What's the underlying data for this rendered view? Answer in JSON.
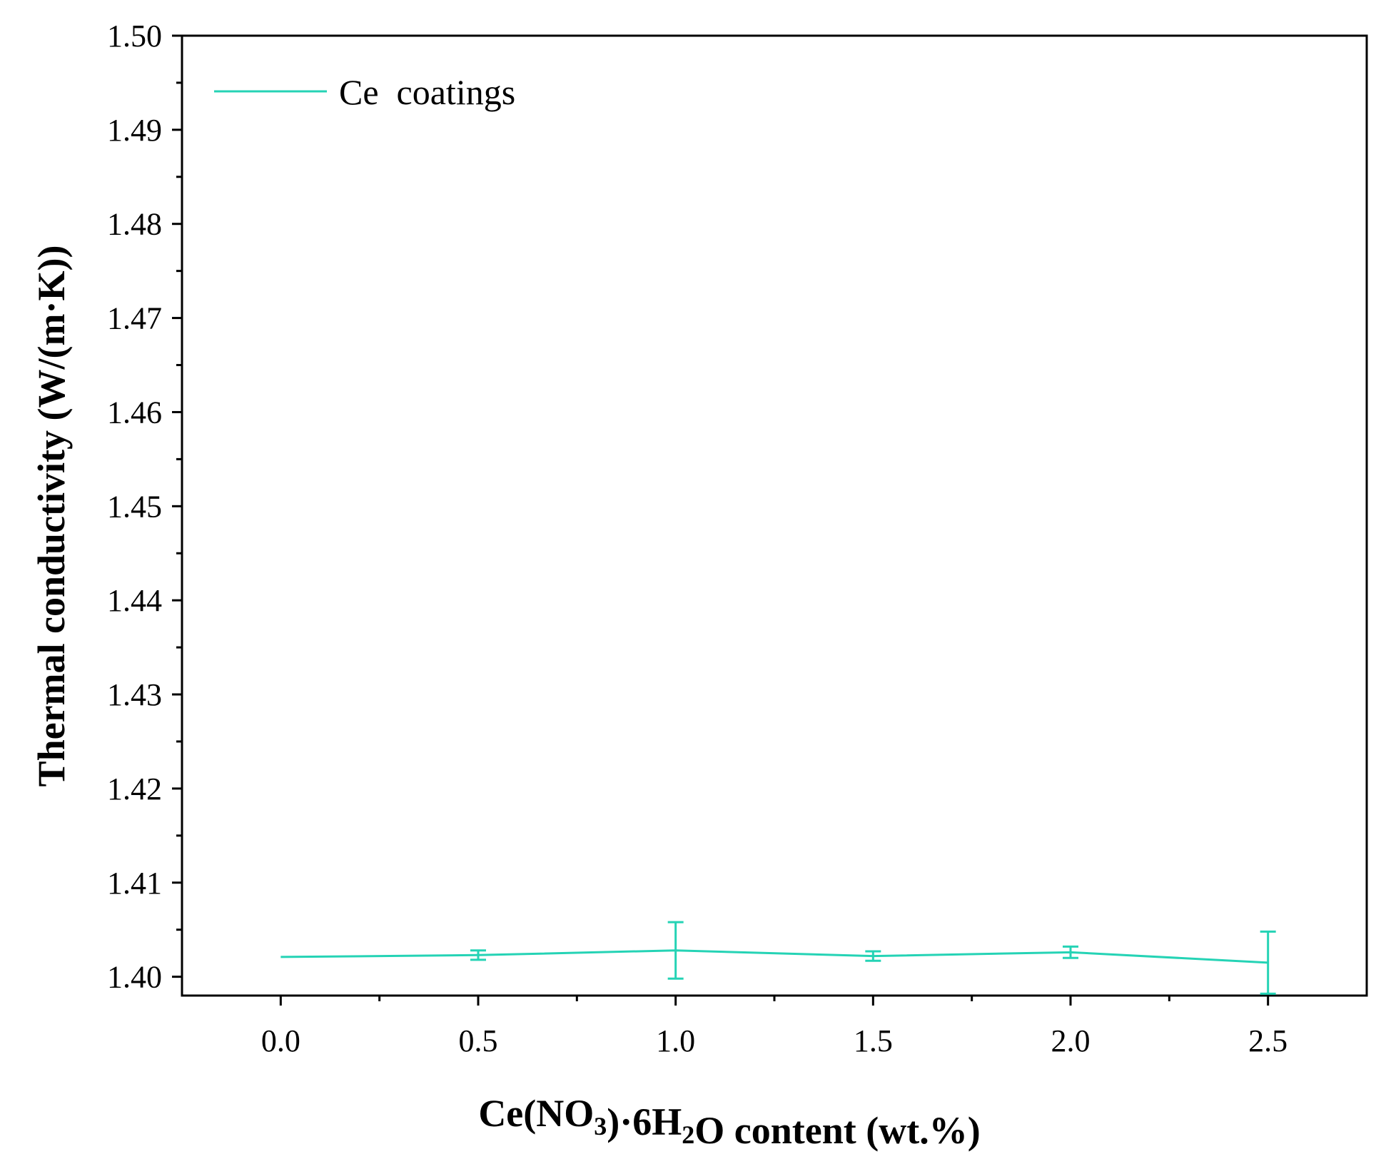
{
  "chart_data": {
    "type": "line",
    "title": "",
    "xlabel": {
      "parts": [
        {
          "text": "Ce(NO",
          "sub": false
        },
        {
          "text": "3",
          "sub": true
        },
        {
          "text": ")·6H",
          "sub": false
        },
        {
          "text": "2",
          "sub": true
        },
        {
          "text": "O content (wt.%)",
          "sub": false
        }
      ]
    },
    "ylabel": "Thermal conductivity (W/(m·K))",
    "xlim": [
      -0.25,
      2.75
    ],
    "ylim": [
      1.398,
      1.5
    ],
    "x_ticks": [
      0.0,
      0.5,
      1.0,
      1.5,
      2.0,
      2.5
    ],
    "x_tick_labels": [
      "0.0",
      "0.5",
      "1.0",
      "1.5",
      "2.0",
      "2.5"
    ],
    "x_minor_ticks": [
      0.25,
      0.75,
      1.25,
      1.75,
      2.25
    ],
    "y_ticks": [
      1.4,
      1.41,
      1.42,
      1.43,
      1.44,
      1.45,
      1.46,
      1.47,
      1.48,
      1.49,
      1.5
    ],
    "y_tick_labels": [
      "1.40",
      "1.41",
      "1.42",
      "1.43",
      "1.44",
      "1.45",
      "1.46",
      "1.47",
      "1.48",
      "1.49",
      "1.50"
    ],
    "y_minor_ticks": [
      1.405,
      1.415,
      1.425,
      1.435,
      1.445,
      1.455,
      1.465,
      1.475,
      1.485,
      1.495
    ],
    "grid": false,
    "legend_position": "top-left",
    "series": [
      {
        "name": "Ce  coatings",
        "color": "#25d3b5",
        "x": [
          0.0,
          0.5,
          1.0,
          1.5,
          2.0,
          2.5
        ],
        "y": [
          1.4021,
          1.4023,
          1.4028,
          1.4022,
          1.4026,
          1.4015
        ],
        "error": [
          0.0,
          0.0005,
          0.003,
          0.0005,
          0.0006,
          0.0033
        ]
      }
    ]
  }
}
